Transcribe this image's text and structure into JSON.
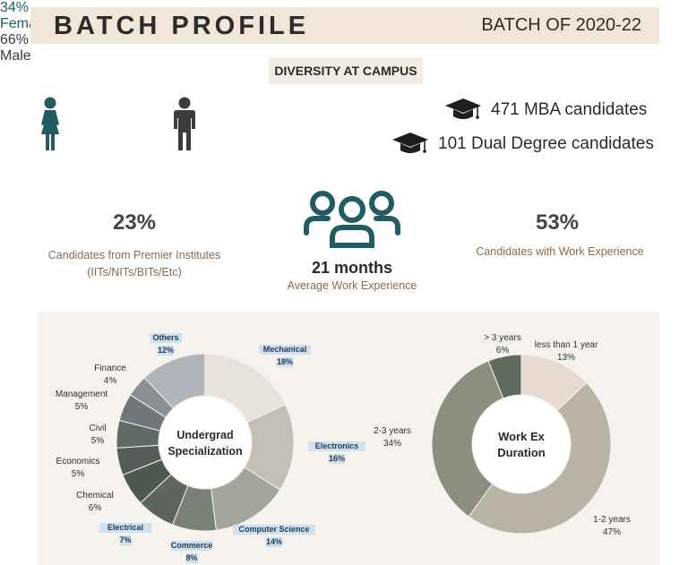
{
  "header": {
    "title": "BATCH PROFILE",
    "batch": "BATCH OF 2020-22"
  },
  "diversity_label": "DIVERSITY AT CAMPUS",
  "gender": {
    "female": {
      "pct": "34%",
      "label": "Female",
      "color": "#215c63",
      "icon": "female-person-icon"
    },
    "male": {
      "pct": "66%",
      "label": "Male",
      "color": "#3b3b3b",
      "icon": "male-person-icon"
    }
  },
  "candidates": {
    "mba": {
      "text": "471 MBA candidates",
      "icon": "graduation-cap-icon"
    },
    "dual": {
      "text": "101 Dual Degree candidates",
      "icon": "graduation-cap-icon"
    }
  },
  "stats": {
    "premier": {
      "value": "23%",
      "line1": "Candidates from Premier Institutes",
      "line2": "(IITs/NITs/BITs/Etc)"
    },
    "work_exp_avg": {
      "value": "21 months",
      "label": "Average Work Experience",
      "icon": "group-people-icon"
    },
    "work_exp_pct": {
      "value": "53%",
      "label": "Candidates with Work Experience"
    }
  },
  "chart_data": [
    {
      "type": "pie",
      "title": "Undergrad Specialization",
      "slices": [
        {
          "label": "Mechanical",
          "value": 18,
          "pct_label": "18%",
          "color": "#e8e2dc",
          "highlight": true
        },
        {
          "label": "Electronics",
          "value": 16,
          "pct_label": "16%",
          "color": "#c3beb6",
          "highlight": true
        },
        {
          "label": "Computer Science",
          "value": 14,
          "pct_label": "14%",
          "color": "#a3a69c",
          "highlight": true
        },
        {
          "label": "Commerce",
          "value": 8,
          "pct_label": "8%",
          "color": "#7a8075",
          "highlight": true
        },
        {
          "label": "Electrical",
          "value": 7,
          "pct_label": "7%",
          "color": "#5d655c",
          "highlight": true
        },
        {
          "label": "Chemical",
          "value": 6,
          "pct_label": "6%",
          "color": "#4e5750",
          "highlight": false
        },
        {
          "label": "Economics",
          "value": 5,
          "pct_label": "5%",
          "color": "#555d58",
          "highlight": false
        },
        {
          "label": "Civil",
          "value": 5,
          "pct_label": "5%",
          "color": "#626a66",
          "highlight": false
        },
        {
          "label": "Management",
          "value": 5,
          "pct_label": "5%",
          "color": "#70777a",
          "highlight": false
        },
        {
          "label": "Finance",
          "value": 4,
          "pct_label": "4%",
          "color": "#8a9096",
          "highlight": false
        },
        {
          "label": "Others",
          "value": 12,
          "pct_label": "12%",
          "color": "#b2b5bb",
          "highlight": true
        }
      ]
    },
    {
      "type": "pie",
      "title": "Work Ex Duration",
      "slices": [
        {
          "label": "less than 1 year",
          "value": 13,
          "pct_label": "13%",
          "color": "#e7dbcf"
        },
        {
          "label": "1-2 years",
          "value": 47,
          "pct_label": "47%",
          "color": "#b9b3a6"
        },
        {
          "label": "2-3 years",
          "value": 34,
          "pct_label": "34%",
          "color": "#8b8f80"
        },
        {
          "label": "> 3 years",
          "value": 6,
          "pct_label": "6%",
          "color": "#5f6a5e"
        }
      ]
    }
  ]
}
